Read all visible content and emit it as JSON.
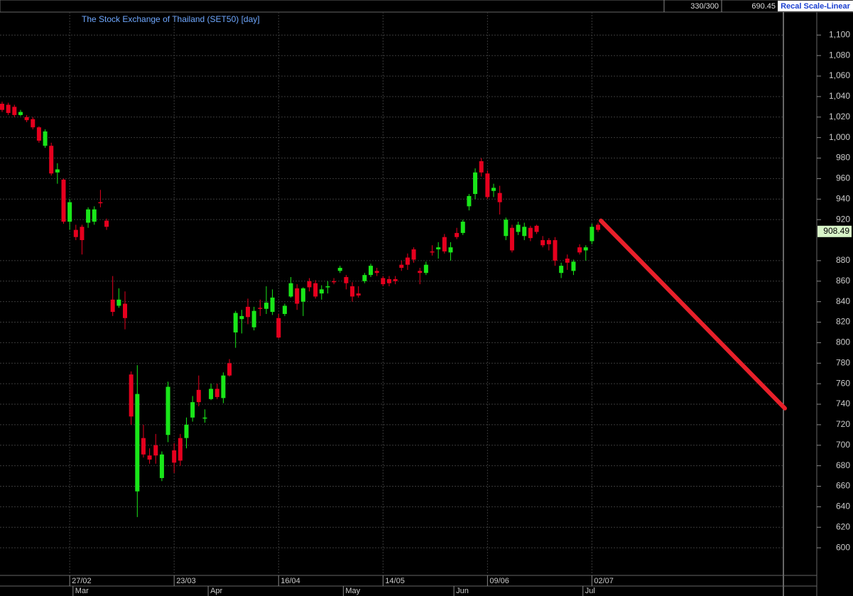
{
  "header": {
    "counter": "330/300",
    "value": "690.45",
    "scale_button": "Recal Scale-Linear"
  },
  "chart_data": {
    "type": "candlestick",
    "title": "The Stock Exchange of Thailand (SET50) [day]",
    "categories": [
      null,
      null,
      null,
      null,
      null,
      null,
      null,
      null,
      null,
      null,
      null,
      "27/02",
      null,
      null,
      null,
      null,
      null,
      null,
      null,
      null,
      null,
      null,
      null,
      null,
      null,
      null,
      null,
      null,
      "23/03",
      null,
      null,
      null,
      null,
      null,
      null,
      null,
      null,
      null,
      null,
      null,
      null,
      null,
      null,
      null,
      null,
      "16/04",
      null,
      null,
      null,
      null,
      null,
      null,
      null,
      null,
      null,
      null,
      null,
      null,
      null,
      null,
      null,
      null,
      "14/05",
      null,
      null,
      null,
      null,
      null,
      null,
      null,
      null,
      null,
      null,
      null,
      null,
      null,
      null,
      null,
      null,
      "09/06",
      null,
      null,
      null,
      null,
      null,
      null,
      null,
      null,
      null,
      null,
      null,
      null,
      null,
      null,
      null,
      null,
      "02/07",
      null
    ],
    "months": [
      null,
      null,
      null,
      null,
      null,
      null,
      null,
      null,
      null,
      null,
      null,
      null,
      "Mar",
      null,
      null,
      null,
      null,
      null,
      null,
      null,
      null,
      null,
      null,
      null,
      null,
      null,
      null,
      null,
      null,
      null,
      null,
      null,
      null,
      null,
      "Apr",
      null,
      null,
      null,
      null,
      null,
      null,
      null,
      null,
      null,
      null,
      null,
      null,
      null,
      null,
      null,
      null,
      null,
      null,
      null,
      null,
      null,
      "May",
      null,
      null,
      null,
      null,
      null,
      null,
      null,
      null,
      null,
      null,
      null,
      null,
      null,
      null,
      null,
      null,
      null,
      "Jun",
      null,
      null,
      null,
      null,
      null,
      null,
      null,
      null,
      null,
      null,
      null,
      null,
      null,
      null,
      null,
      null,
      null,
      null,
      null,
      null,
      "Jul",
      null,
      null
    ],
    "open": [
      1033,
      1032,
      1030,
      1022,
      1020,
      1018,
      1010,
      992,
      992,
      966,
      959,
      918,
      910,
      913,
      917,
      918,
      937,
      919,
      842,
      836,
      838,
      769,
      655,
      707,
      690,
      700,
      668,
      710,
      695,
      707,
      707,
      727,
      754,
      727,
      745,
      755,
      746,
      780,
      810,
      823,
      835,
      815,
      834,
      833,
      830,
      824,
      828,
      845,
      853,
      840,
      860,
      858,
      848,
      854,
      860,
      870,
      864,
      855,
      848,
      860,
      866,
      870,
      863,
      862,
      862,
      876,
      883,
      891,
      870,
      868,
      889,
      891,
      903,
      888,
      907,
      907,
      933,
      945,
      977,
      965,
      948,
      946,
      904,
      912,
      908,
      904,
      912,
      914,
      900,
      900,
      900,
      868,
      882,
      870,
      893,
      890,
      899,
      915
    ],
    "high": [
      1035,
      1034,
      1032,
      1027,
      1022,
      1020,
      1011,
      1008,
      995,
      975,
      960,
      940,
      915,
      915,
      932,
      933,
      949,
      921,
      865,
      853,
      850,
      772,
      778,
      720,
      697,
      711,
      694,
      762,
      702,
      711,
      727,
      748,
      768,
      735,
      760,
      760,
      771,
      784,
      831,
      832,
      843,
      835,
      842,
      855,
      852,
      828,
      838,
      864,
      857,
      854,
      863,
      861,
      856,
      860,
      863,
      875,
      866,
      859,
      855,
      868,
      877,
      873,
      865,
      865,
      865,
      880,
      887,
      893,
      873,
      879,
      895,
      898,
      906,
      898,
      912,
      920,
      945,
      970,
      980,
      968,
      955,
      953,
      922,
      915,
      918,
      917,
      914,
      915,
      904,
      902,
      903,
      878,
      886,
      881,
      896,
      895,
      916,
      917
    ],
    "low": [
      1025,
      1022,
      1020,
      1021,
      1015,
      1008,
      995,
      990,
      963,
      955,
      916,
      910,
      900,
      886,
      912,
      915,
      932,
      910,
      826,
      834,
      813,
      720,
      630,
      688,
      682,
      682,
      665,
      703,
      673,
      680,
      697,
      723,
      738,
      722,
      744,
      745,
      741,
      767,
      795,
      809,
      818,
      812,
      826,
      828,
      827,
      804,
      826,
      844,
      832,
      826,
      850,
      843,
      842,
      848,
      857,
      868,
      852,
      840,
      844,
      858,
      864,
      865,
      855,
      855,
      857,
      870,
      871,
      878,
      857,
      866,
      885,
      882,
      887,
      880,
      901,
      905,
      929,
      940,
      962,
      940,
      942,
      925,
      900,
      888,
      905,
      900,
      899,
      906,
      893,
      890,
      875,
      863,
      871,
      866,
      886,
      880,
      896,
      908
    ],
    "close": [
      1027,
      1024,
      1022,
      1025,
      1017,
      1010,
      997,
      1006,
      965,
      969,
      918,
      937,
      903,
      900,
      930,
      930,
      936,
      913,
      830,
      842,
      824,
      728,
      750,
      691,
      686,
      690,
      691,
      757,
      683,
      685,
      720,
      742,
      742,
      727,
      755,
      747,
      768,
      768,
      829,
      826,
      825,
      831,
      833,
      839,
      844,
      805,
      836,
      858,
      838,
      853,
      854,
      845,
      852,
      855,
      859,
      873,
      858,
      845,
      846,
      866,
      875,
      868,
      857,
      858,
      860,
      873,
      876,
      881,
      868,
      876,
      888,
      893,
      889,
      893,
      903,
      918,
      943,
      966,
      966,
      942,
      951,
      937,
      920,
      890,
      915,
      913,
      902,
      908,
      895,
      896,
      880,
      875,
      878,
      879,
      888,
      893,
      913,
      910
    ],
    "up_color": "#19e619",
    "down_color": "#e6001e",
    "ylim": [
      580,
      1112
    ],
    "yticks": [
      600,
      620,
      640,
      660,
      680,
      700,
      720,
      740,
      760,
      780,
      800,
      820,
      840,
      860,
      880,
      {
        "value": 1000,
        "label": "1,000"
      },
      {
        "value": 1020,
        "label": "1,020"
      },
      {
        "value": 1040,
        "label": "1,040"
      },
      {
        "value": 1060,
        "label": "1,060"
      },
      {
        "value": 1080,
        "label": "1,080"
      },
      {
        "value": 1100,
        "label": "1,100"
      },
      920,
      940,
      960,
      980
    ],
    "last_price": 908.49,
    "trendline": {
      "values": [
        919,
        736
      ],
      "color": "#e8202a"
    },
    "grid": true
  }
}
